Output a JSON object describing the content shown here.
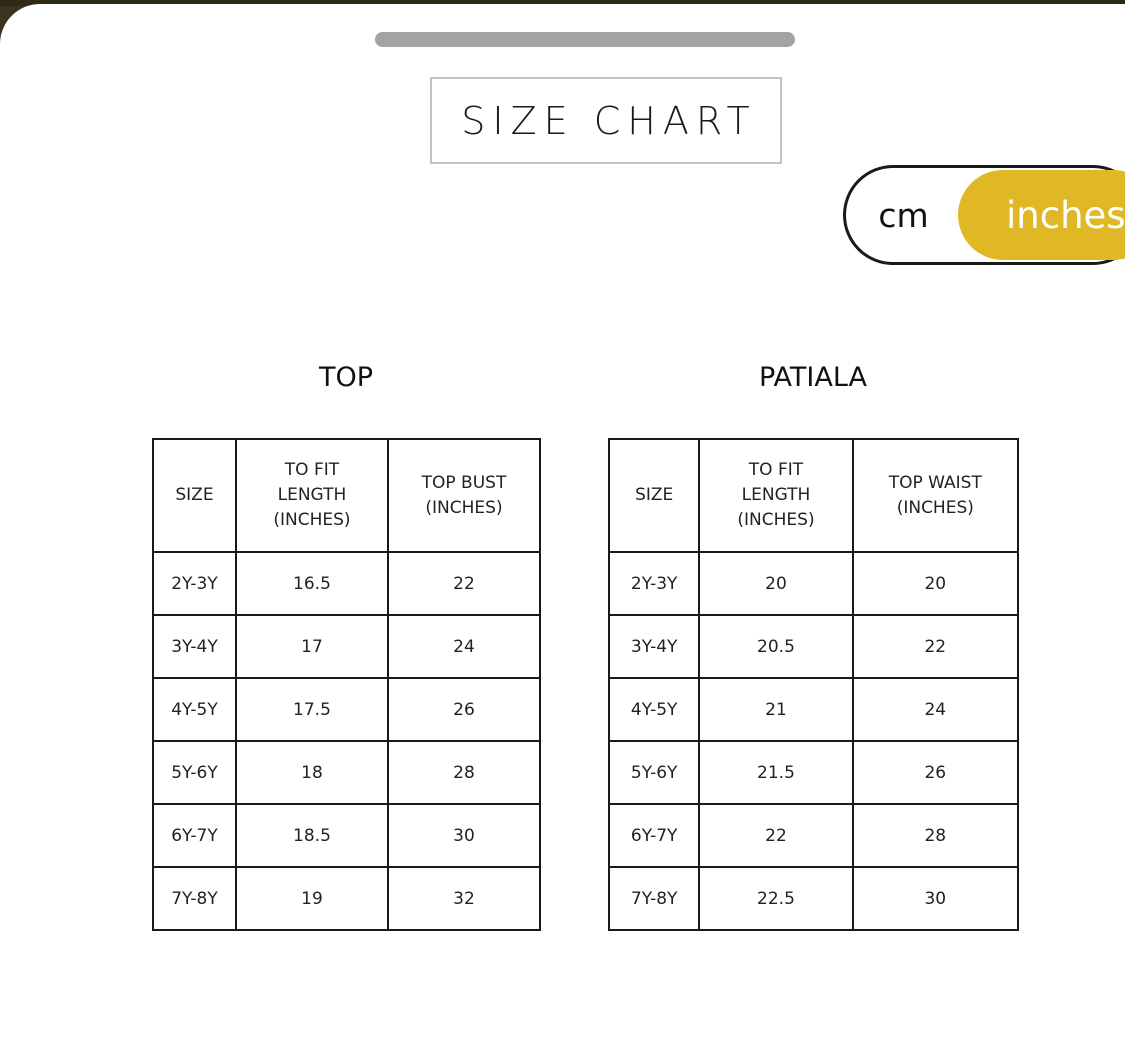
{
  "title": "SIZE CHART",
  "unit_toggle": {
    "options": [
      "cm",
      "inches"
    ],
    "selected": "inches",
    "accent_color": "#e0b826"
  },
  "tables": [
    {
      "title": "TOP",
      "headers": [
        "SIZE",
        "TO FIT LENGTH (INCHES)",
        "TOP BUST (INCHES)"
      ],
      "rows": [
        [
          "2Y-3Y",
          "16.5",
          "22"
        ],
        [
          "3Y-4Y",
          "17",
          "24"
        ],
        [
          "4Y-5Y",
          "17.5",
          "26"
        ],
        [
          "5Y-6Y",
          "18",
          "28"
        ],
        [
          "6Y-7Y",
          "18.5",
          "30"
        ],
        [
          "7Y-8Y",
          "19",
          "32"
        ]
      ]
    },
    {
      "title": "PATIALA",
      "headers": [
        "SIZE",
        "TO FIT LENGTH (INCHES)",
        "TOP WAIST (INCHES)"
      ],
      "rows": [
        [
          "2Y-3Y",
          "20",
          "20"
        ],
        [
          "3Y-4Y",
          "20.5",
          "22"
        ],
        [
          "4Y-5Y",
          "21",
          "24"
        ],
        [
          "5Y-6Y",
          "21.5",
          "26"
        ],
        [
          "6Y-7Y",
          "22",
          "28"
        ],
        [
          "7Y-8Y",
          "22.5",
          "30"
        ]
      ]
    }
  ]
}
